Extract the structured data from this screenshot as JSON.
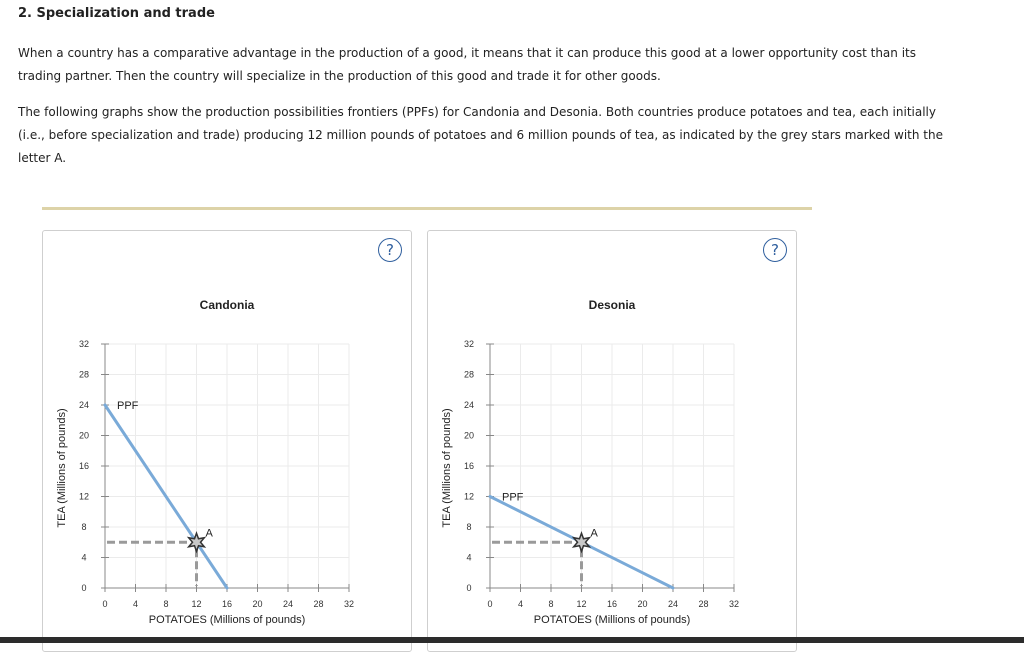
{
  "page": {
    "heading": "2. Specialization and trade",
    "paragraph1": "When a country has a comparative advantage in the production of a good, it means that it can produce this good at a lower opportunity cost than its trading partner. Then the country will specialize in the production of this good and trade it for other goods.",
    "paragraph2": "The following graphs show the production possibilities frontiers (PPFs) for Candonia and Desonia. Both countries produce potatoes and tea, each initially (i.e., before specialization and trade) producing 12 million pounds of potatoes and 6 million pounds of tea, as indicated by the grey stars marked with the letter A.",
    "help_symbol": "?"
  },
  "colors": {
    "ppf_line": "#7aaad8",
    "dash_line": "#9a9a9a",
    "grid": "#ebebeb",
    "axis": "#888888",
    "star_fill": "#c8c8c8",
    "star_stroke": "#333333"
  },
  "chart_data": [
    {
      "type": "line",
      "title": "Candonia",
      "xlabel": "POTATOES (Millions of pounds)",
      "ylabel": "TEA (Millions of pounds)",
      "xlim": [
        0,
        32
      ],
      "ylim": [
        0,
        32
      ],
      "xticks": [
        0,
        4,
        8,
        12,
        16,
        20,
        24,
        28,
        32
      ],
      "yticks": [
        0,
        4,
        8,
        12,
        16,
        20,
        24,
        28,
        32
      ],
      "grid": true,
      "series": [
        {
          "name": "PPF",
          "x": [
            0,
            16
          ],
          "y": [
            24,
            0
          ]
        }
      ],
      "point": {
        "label": "A",
        "x": 12,
        "y": 6
      }
    },
    {
      "type": "line",
      "title": "Desonia",
      "xlabel": "POTATOES (Millions of pounds)",
      "ylabel": "TEA (Millions of pounds)",
      "xlim": [
        0,
        32
      ],
      "ylim": [
        0,
        32
      ],
      "xticks": [
        0,
        4,
        8,
        12,
        16,
        20,
        24,
        28,
        32
      ],
      "yticks": [
        0,
        4,
        8,
        12,
        16,
        20,
        24,
        28,
        32
      ],
      "grid": true,
      "series": [
        {
          "name": "PPF",
          "x": [
            0,
            24
          ],
          "y": [
            12,
            0
          ]
        }
      ],
      "point": {
        "label": "A",
        "x": 12,
        "y": 6
      }
    }
  ]
}
